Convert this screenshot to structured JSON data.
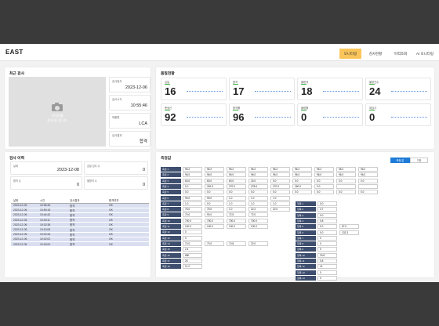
{
  "app": {
    "title": "EAST"
  },
  "nav": [
    {
      "label": "모니터링"
    },
    {
      "label": "검사현황"
    },
    {
      "label": "이력조회"
    },
    {
      "label": "AI 모니터링"
    }
  ],
  "recent": {
    "title": "최근 검사",
    "photo_text_1": "이미지를",
    "photo_text_2": "준비 중 입니다",
    "fields": [
      {
        "label": "검사일자",
        "value": "2023-12-06"
      },
      {
        "label": "검사시각",
        "value": "10:55:46"
      },
      {
        "label": "제품명",
        "value": "LCA"
      },
      {
        "label": "검사결과",
        "value": "합격"
      }
    ]
  },
  "status": {
    "title": "품질현황",
    "cards": [
      {
        "label": "금일",
        "value": "16"
      },
      {
        "label": "합격",
        "value": "17"
      },
      {
        "label": "불합격",
        "value": "18"
      },
      {
        "label": "불량건수",
        "value": "24"
      },
      {
        "label": "총생산",
        "value": "92"
      },
      {
        "label": "합격률",
        "value": "96"
      },
      {
        "label": "불량률",
        "value": "0"
      },
      {
        "label": "재검사",
        "value": "0"
      }
    ]
  },
  "inspection": {
    "title": "검사 이력",
    "date_label": "날짜",
    "date": "2023-12-08",
    "count_label": "금일 검사 수",
    "count": "0",
    "pass_label": "합격 수",
    "pass": "0",
    "fail_label": "불합격 수",
    "fail": "0",
    "columns": [
      "날짜",
      "시간",
      "검사결과",
      "합격여부"
    ],
    "rows": [
      [
        "2023-12-06",
        "10:55:46",
        "합격",
        "OK"
      ],
      [
        "2023-12-06",
        "10:50:15",
        "합격",
        "OK"
      ],
      [
        "2023-12-06",
        "10:44:42",
        "합격",
        "OK"
      ],
      [
        "2023-12-06",
        "10:40:11",
        "합격",
        "OK"
      ],
      [
        "2023-12-06",
        "10:32:38",
        "합격",
        "OK"
      ],
      [
        "2023-12-06",
        "10:10:06",
        "합격",
        "OK"
      ],
      [
        "2023-12-06",
        "10:02:34",
        "합격",
        "OK"
      ],
      [
        "2023-12-06",
        "10:02:02",
        "합격",
        "OK"
      ],
      [
        "2023-12-06",
        "10:00:00",
        "합격",
        "OK"
      ]
    ]
  },
  "measurements": {
    "title": "측정값",
    "switch": [
      "측정 값",
      "기준"
    ],
    "left_rows": [
      {
        "label": "측정 1",
        "values": [
          "95.2",
          "95.2",
          "95.2",
          "95.2",
          "95.2",
          "95.2",
          "95.2",
          "95.2",
          "95.2"
        ]
      },
      {
        "label": "측정 2",
        "values": [
          "96.0",
          "96.0",
          "96.0",
          "96.0",
          "96.0",
          "96.0",
          "96.0",
          "96.0",
          "96.0"
        ]
      },
      {
        "label": "측정 3",
        "values": [
          "60.0",
          "60.0",
          "60.0",
          "15.0",
          "0.0",
          "0.0",
          "0.0",
          "0.0",
          "0.0"
        ]
      },
      {
        "label": "측정 4",
        "values": [
          "0.0",
          "281.5",
          "270.0",
          "278.6",
          "270.0",
          "260.0",
          "0.0",
          "",
          ""
        ]
      },
      {
        "label": "측정 5",
        "values": [
          "0.0",
          "0.0",
          "0.0",
          "0.0",
          "0.0",
          "0.0",
          "0.0",
          "0.0",
          "0.0"
        ]
      },
      {
        "label": "측정 6",
        "values": [
          "99.0",
          "99.0",
          "1.0",
          "1.0",
          "1.0"
        ]
      },
      {
        "label": "측정 7",
        "values": [
          "1.0",
          "0.0",
          "1.0",
          "1.0",
          "1.0"
        ]
      },
      {
        "label": "측정 8",
        "values": [
          "75.0",
          "75.0",
          "1.0",
          "22.2",
          "22.0"
        ]
      },
      {
        "label": "측정 9",
        "values": [
          "70.0",
          "90.0",
          "72.5",
          "72.0"
        ]
      },
      {
        "label": "측정 10",
        "values": [
          "700.0",
          "700.0",
          "700.0",
          "700.0"
        ]
      },
      {
        "label": "측정 11",
        "values": [
          "100.0",
          "100.0",
          "100.0",
          "100.0"
        ]
      },
      {
        "label": "측정 12",
        "values": [
          "0"
        ]
      },
      {
        "label": "측정 13",
        "values": [
          "0"
        ]
      },
      {
        "label": "측정 14",
        "values": [
          "70.0",
          "70.0",
          "70.8",
          "22.0"
        ]
      },
      {
        "label": "측정 15",
        "values": [
          "2.4"
        ]
      },
      {
        "label": "측정 16",
        "values": [
          "880"
        ]
      },
      {
        "label": "측정 17",
        "values": [
          "26"
        ]
      },
      {
        "label": "측정 18",
        "values": [
          "11.2"
        ]
      }
    ],
    "right_rows": [
      {
        "label": "항목 1",
        "values": [
          "0.0"
        ]
      },
      {
        "label": "항목 2",
        "values": [
          "4.7"
        ]
      },
      {
        "label": "항목 3",
        "values": [
          "0.0"
        ]
      },
      {
        "label": "항목 4",
        "values": [
          "0.8"
        ]
      },
      {
        "label": "항목 5",
        "values": [
          "0.0",
          "57.0"
        ]
      },
      {
        "label": "항목 6",
        "values": [
          "0.0",
          "132.3"
        ]
      },
      {
        "label": "항목 7",
        "values": [
          "0"
        ]
      },
      {
        "label": "항목 8",
        "values": [
          "0"
        ]
      },
      {
        "label": "항목 9",
        "values": [
          "0"
        ]
      },
      {
        "label": "항목 10",
        "values": [
          "23.8"
        ]
      },
      {
        "label": "항목 11",
        "values": [
          "0.8"
        ]
      },
      {
        "label": "항목 12",
        "values": [
          "41"
        ]
      },
      {
        "label": "항목 13",
        "values": [
          "0"
        ]
      },
      {
        "label": "항목 14",
        "values": [
          "0"
        ]
      }
    ]
  }
}
